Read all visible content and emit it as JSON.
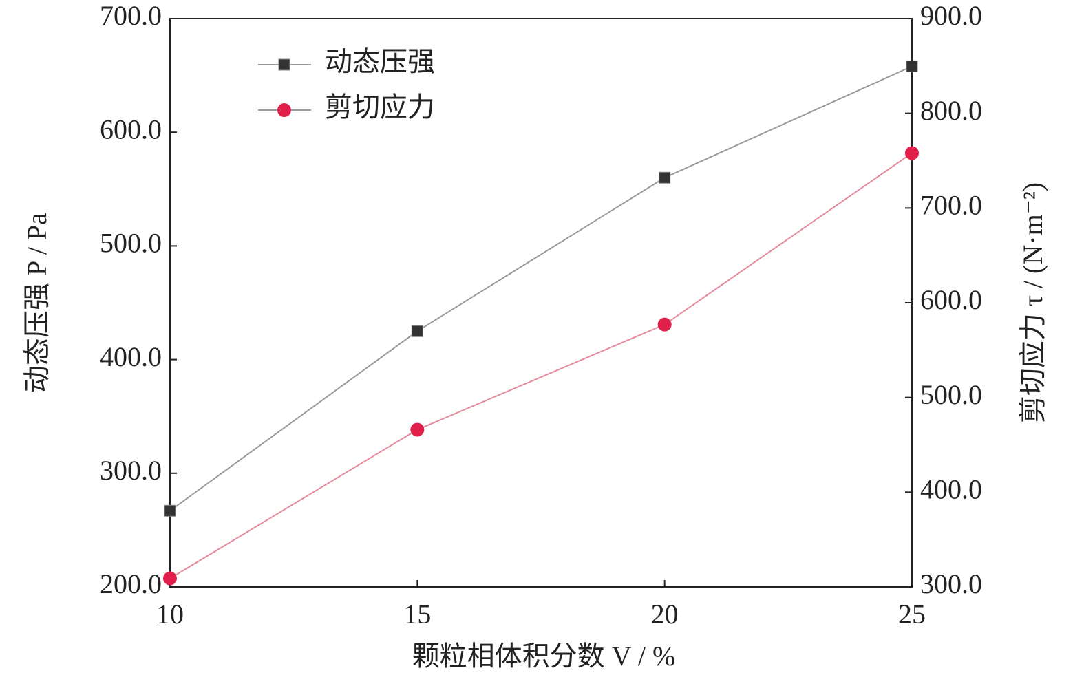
{
  "chart_data": {
    "type": "line",
    "x": [
      10,
      15,
      20,
      25
    ],
    "xlabel": "颗粒相体积分数 V / %",
    "ylabel": "动态压强 P / Pa",
    "y2label": "剪切应力 τ / (N·m⁻²)",
    "xlim": [
      10,
      25
    ],
    "xticks": [
      10,
      15,
      20,
      25
    ],
    "ylim": [
      200,
      700
    ],
    "yticks": [
      {
        "value": 200,
        "label": "200.0"
      },
      {
        "value": 300,
        "label": "300.0"
      },
      {
        "value": 400,
        "label": "400.0"
      },
      {
        "value": 500,
        "label": "500.0"
      },
      {
        "value": 600,
        "label": "600.0"
      },
      {
        "value": 700,
        "label": "700.0"
      }
    ],
    "y2lim": [
      300,
      900
    ],
    "y2ticks": [
      {
        "value": 300,
        "label": "300.0"
      },
      {
        "value": 400,
        "label": "400.0"
      },
      {
        "value": 500,
        "label": "500.0"
      },
      {
        "value": 600,
        "label": "600.0"
      },
      {
        "value": 700,
        "label": "700.0"
      },
      {
        "value": 800,
        "label": "800.0"
      },
      {
        "value": 900,
        "label": "900.0"
      }
    ],
    "legend": "upper left",
    "series": [
      {
        "name": "动态压强",
        "color": "#333333",
        "marker": "square",
        "values": [
          267,
          425,
          560,
          658
        ]
      },
      {
        "name": "剪切应力",
        "color": "#e0204a",
        "marker": "circle",
        "axis": "y2",
        "values": [
          309,
          466,
          577,
          758
        ]
      }
    ]
  }
}
